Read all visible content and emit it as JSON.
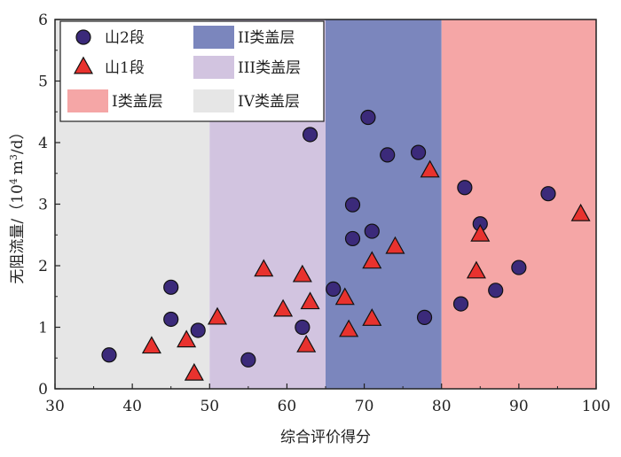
{
  "chart_data": {
    "type": "scatter",
    "xlabel": "综合评价得分",
    "ylabel": "无阻流量/（10⁴ m³/d）",
    "ylabel_parts": {
      "prefix": "无阻流量/（",
      "base1": "10",
      "sup1": "4",
      "unit_m": "m",
      "sup2": "3",
      "suffix": "/d）"
    },
    "xlim": [
      30,
      100
    ],
    "ylim": [
      0,
      6
    ],
    "x_ticks": [
      "30",
      "40",
      "50",
      "60",
      "70",
      "80",
      "90",
      "100"
    ],
    "y_ticks": [
      "0",
      "1",
      "2",
      "3",
      "4",
      "5",
      "6"
    ],
    "grid": false,
    "legend_position": "top-left",
    "bands": [
      {
        "name": "IV类盖层",
        "from": 30,
        "to": 50,
        "color": "#e6e6e6"
      },
      {
        "name": "III类盖层",
        "from": 50,
        "to": 65,
        "color": "#d2c4e0"
      },
      {
        "name": "II类盖层",
        "from": 65,
        "to": 80,
        "color": "#7b86bd"
      },
      {
        "name": "I类盖层",
        "from": 80,
        "to": 100,
        "color": "#f5a6a6"
      }
    ],
    "series": [
      {
        "name": "山2段",
        "marker": "circle",
        "color": "#3b2a7a",
        "points": [
          {
            "x": 37,
            "y": 0.55
          },
          {
            "x": 45,
            "y": 1.65
          },
          {
            "x": 45,
            "y": 1.13
          },
          {
            "x": 48.5,
            "y": 0.95
          },
          {
            "x": 55,
            "y": 0.47
          },
          {
            "x": 62,
            "y": 1.0
          },
          {
            "x": 63,
            "y": 4.13
          },
          {
            "x": 66,
            "y": 1.62
          },
          {
            "x": 68.5,
            "y": 2.99
          },
          {
            "x": 68.5,
            "y": 2.44
          },
          {
            "x": 70.5,
            "y": 4.41
          },
          {
            "x": 71,
            "y": 2.56
          },
          {
            "x": 73,
            "y": 3.8
          },
          {
            "x": 77,
            "y": 3.84
          },
          {
            "x": 77.8,
            "y": 1.16
          },
          {
            "x": 82.5,
            "y": 1.38
          },
          {
            "x": 83,
            "y": 3.27
          },
          {
            "x": 85,
            "y": 2.68
          },
          {
            "x": 87,
            "y": 1.6
          },
          {
            "x": 90,
            "y": 1.97
          },
          {
            "x": 93.8,
            "y": 3.17
          }
        ]
      },
      {
        "name": "山1段",
        "marker": "triangle",
        "color": "#e8322e",
        "points": [
          {
            "x": 42.5,
            "y": 0.68
          },
          {
            "x": 47,
            "y": 0.78
          },
          {
            "x": 48,
            "y": 0.24
          },
          {
            "x": 51,
            "y": 1.15
          },
          {
            "x": 57,
            "y": 1.93
          },
          {
            "x": 59.5,
            "y": 1.28
          },
          {
            "x": 62,
            "y": 1.84
          },
          {
            "x": 62.5,
            "y": 0.7
          },
          {
            "x": 63,
            "y": 1.4
          },
          {
            "x": 67.5,
            "y": 1.47
          },
          {
            "x": 68,
            "y": 0.95
          },
          {
            "x": 71,
            "y": 2.06
          },
          {
            "x": 71,
            "y": 1.13
          },
          {
            "x": 74,
            "y": 2.3
          },
          {
            "x": 78.5,
            "y": 3.54
          },
          {
            "x": 84.5,
            "y": 1.9
          },
          {
            "x": 85,
            "y": 2.5
          },
          {
            "x": 98,
            "y": 2.83
          }
        ]
      }
    ],
    "legend": [
      {
        "label": "山2段",
        "kind": "circle",
        "color": "#3b2a7a"
      },
      {
        "label": "II类盖层",
        "kind": "rect",
        "color": "#7b86bd"
      },
      {
        "label": "山1段",
        "kind": "triangle",
        "color": "#e8322e"
      },
      {
        "label": "III类盖层",
        "kind": "rect",
        "color": "#d2c4e0"
      },
      {
        "label": "I类盖层",
        "kind": "rect",
        "color": "#f5a6a6"
      },
      {
        "label": "IV类盖层",
        "kind": "rect",
        "color": "#e6e6e6"
      }
    ]
  }
}
